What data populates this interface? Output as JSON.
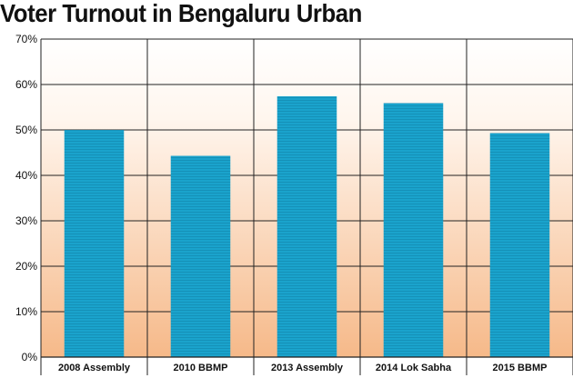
{
  "chart_data": {
    "type": "bar",
    "title": "Voter Turnout in Bengaluru Urban",
    "categories": [
      "2008 Assembly",
      "2010 BBMP",
      "2013 Assembly",
      "2014 Lok Sabha",
      "2015 BBMP"
    ],
    "values": [
      50,
      44.3,
      57.4,
      55.9,
      49.3
    ],
    "ylim": [
      0,
      70
    ],
    "yticks": [
      "0%",
      "10%",
      "20%",
      "30%",
      "40%",
      "50%",
      "60%",
      "70%"
    ],
    "grid": true,
    "colors": {
      "bar": "#1aa3cc",
      "bar_dark": "#1591b8",
      "background_top": "#ffffff",
      "background_bottom": "#f6b989"
    }
  }
}
